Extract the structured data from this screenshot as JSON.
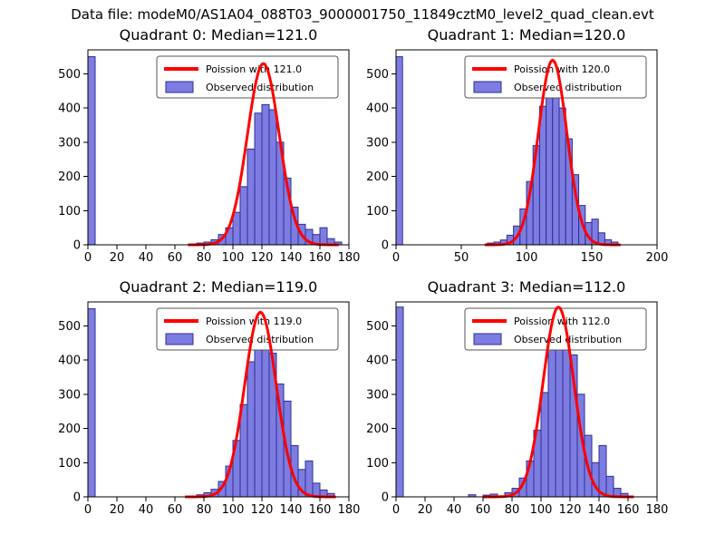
{
  "figure_title": "Data file: modeM0/AS1A04_088T03_9000001750_11849cztM0_level2_quad_clean.evt",
  "colors": {
    "bar_fill": "#7d7de1",
    "bar_edge": "#2d2d96",
    "fit_line": "#ff0000",
    "legend_edge": "#555555",
    "axis": "#000000"
  },
  "chart_data": [
    {
      "type": "bar",
      "subtype": "histogram-with-fit",
      "title": "Quadrant 0: Median=121.0",
      "median": 121.0,
      "legend": [
        "Poission with 121.0",
        "Observed distribution"
      ],
      "xlim": [
        0,
        180
      ],
      "ylim": [
        0,
        570
      ],
      "xticks": [
        0,
        20,
        40,
        60,
        80,
        100,
        120,
        140,
        160,
        180
      ],
      "yticks": [
        0,
        100,
        200,
        300,
        400,
        500
      ],
      "bin_width": 5,
      "bars": [
        [
          0,
          550
        ],
        [
          75,
          5
        ],
        [
          80,
          8
        ],
        [
          85,
          15
        ],
        [
          90,
          30
        ],
        [
          95,
          50
        ],
        [
          100,
          95
        ],
        [
          105,
          170
        ],
        [
          110,
          280
        ],
        [
          115,
          385
        ],
        [
          120,
          410
        ],
        [
          125,
          395
        ],
        [
          130,
          300
        ],
        [
          135,
          195
        ],
        [
          140,
          110
        ],
        [
          145,
          60
        ],
        [
          150,
          45
        ],
        [
          155,
          30
        ],
        [
          160,
          50
        ],
        [
          165,
          18
        ],
        [
          170,
          8
        ]
      ],
      "fit": {
        "label": "Poission with 121.0",
        "lambda": 121,
        "amplitude": 530
      }
    },
    {
      "type": "bar",
      "subtype": "histogram-with-fit",
      "title": "Quadrant 1: Median=120.0",
      "median": 120.0,
      "legend": [
        "Poission with 120.0",
        "Observed distribution"
      ],
      "xlim": [
        0,
        200
      ],
      "ylim": [
        0,
        570
      ],
      "xticks": [
        0,
        50,
        100,
        150,
        200
      ],
      "yticks": [
        0,
        100,
        200,
        300,
        400,
        500
      ],
      "bin_width": 5,
      "bars": [
        [
          0,
          550
        ],
        [
          70,
          5
        ],
        [
          75,
          8
        ],
        [
          80,
          14
        ],
        [
          85,
          28
        ],
        [
          90,
          55
        ],
        [
          95,
          105
        ],
        [
          100,
          185
        ],
        [
          105,
          290
        ],
        [
          110,
          405
        ],
        [
          115,
          520
        ],
        [
          120,
          500
        ],
        [
          125,
          400
        ],
        [
          130,
          310
        ],
        [
          135,
          205
        ],
        [
          140,
          115
        ],
        [
          145,
          65
        ],
        [
          150,
          75
        ],
        [
          155,
          35
        ],
        [
          160,
          15
        ],
        [
          165,
          8
        ]
      ],
      "fit": {
        "label": "Poission with 120.0",
        "lambda": 120,
        "amplitude": 540
      }
    },
    {
      "type": "bar",
      "subtype": "histogram-with-fit",
      "title": "Quadrant 2: Median=119.0",
      "median": 119.0,
      "legend": [
        "Poission with 119.0",
        "Observed distribution"
      ],
      "xlim": [
        0,
        180
      ],
      "ylim": [
        0,
        570
      ],
      "xticks": [
        0,
        20,
        40,
        60,
        80,
        100,
        120,
        140,
        160,
        180
      ],
      "yticks": [
        0,
        100,
        200,
        300,
        400,
        500
      ],
      "bin_width": 5,
      "bars": [
        [
          0,
          550
        ],
        [
          75,
          6
        ],
        [
          80,
          12
        ],
        [
          85,
          22
        ],
        [
          90,
          45
        ],
        [
          95,
          90
        ],
        [
          100,
          165
        ],
        [
          105,
          270
        ],
        [
          110,
          395
        ],
        [
          115,
          520
        ],
        [
          120,
          505
        ],
        [
          125,
          420
        ],
        [
          130,
          330
        ],
        [
          135,
          280
        ],
        [
          140,
          150
        ],
        [
          145,
          80
        ],
        [
          150,
          105
        ],
        [
          155,
          40
        ],
        [
          160,
          20
        ],
        [
          165,
          10
        ]
      ],
      "fit": {
        "label": "Poission with 119.0",
        "lambda": 119,
        "amplitude": 540
      }
    },
    {
      "type": "bar",
      "subtype": "histogram-with-fit",
      "title": "Quadrant 3: Median=112.0",
      "median": 112.0,
      "legend": [
        "Poission with 112.0",
        "Observed distribution"
      ],
      "xlim": [
        0,
        180
      ],
      "ylim": [
        0,
        570
      ],
      "xticks": [
        0,
        20,
        40,
        60,
        80,
        100,
        120,
        140,
        160,
        180
      ],
      "yticks": [
        0,
        100,
        200,
        300,
        400,
        500
      ],
      "bin_width": 5,
      "bars": [
        [
          0,
          555
        ],
        [
          50,
          6
        ],
        [
          60,
          5
        ],
        [
          65,
          8
        ],
        [
          75,
          12
        ],
        [
          80,
          25
        ],
        [
          85,
          55
        ],
        [
          90,
          105
        ],
        [
          95,
          195
        ],
        [
          100,
          305
        ],
        [
          105,
          430
        ],
        [
          110,
          540
        ],
        [
          115,
          520
        ],
        [
          120,
          415
        ],
        [
          125,
          300
        ],
        [
          130,
          180
        ],
        [
          135,
          100
        ],
        [
          140,
          150
        ],
        [
          145,
          60
        ],
        [
          150,
          25
        ],
        [
          155,
          10
        ]
      ],
      "fit": {
        "label": "Poission with 112.0",
        "lambda": 112,
        "amplitude": 555
      }
    }
  ]
}
